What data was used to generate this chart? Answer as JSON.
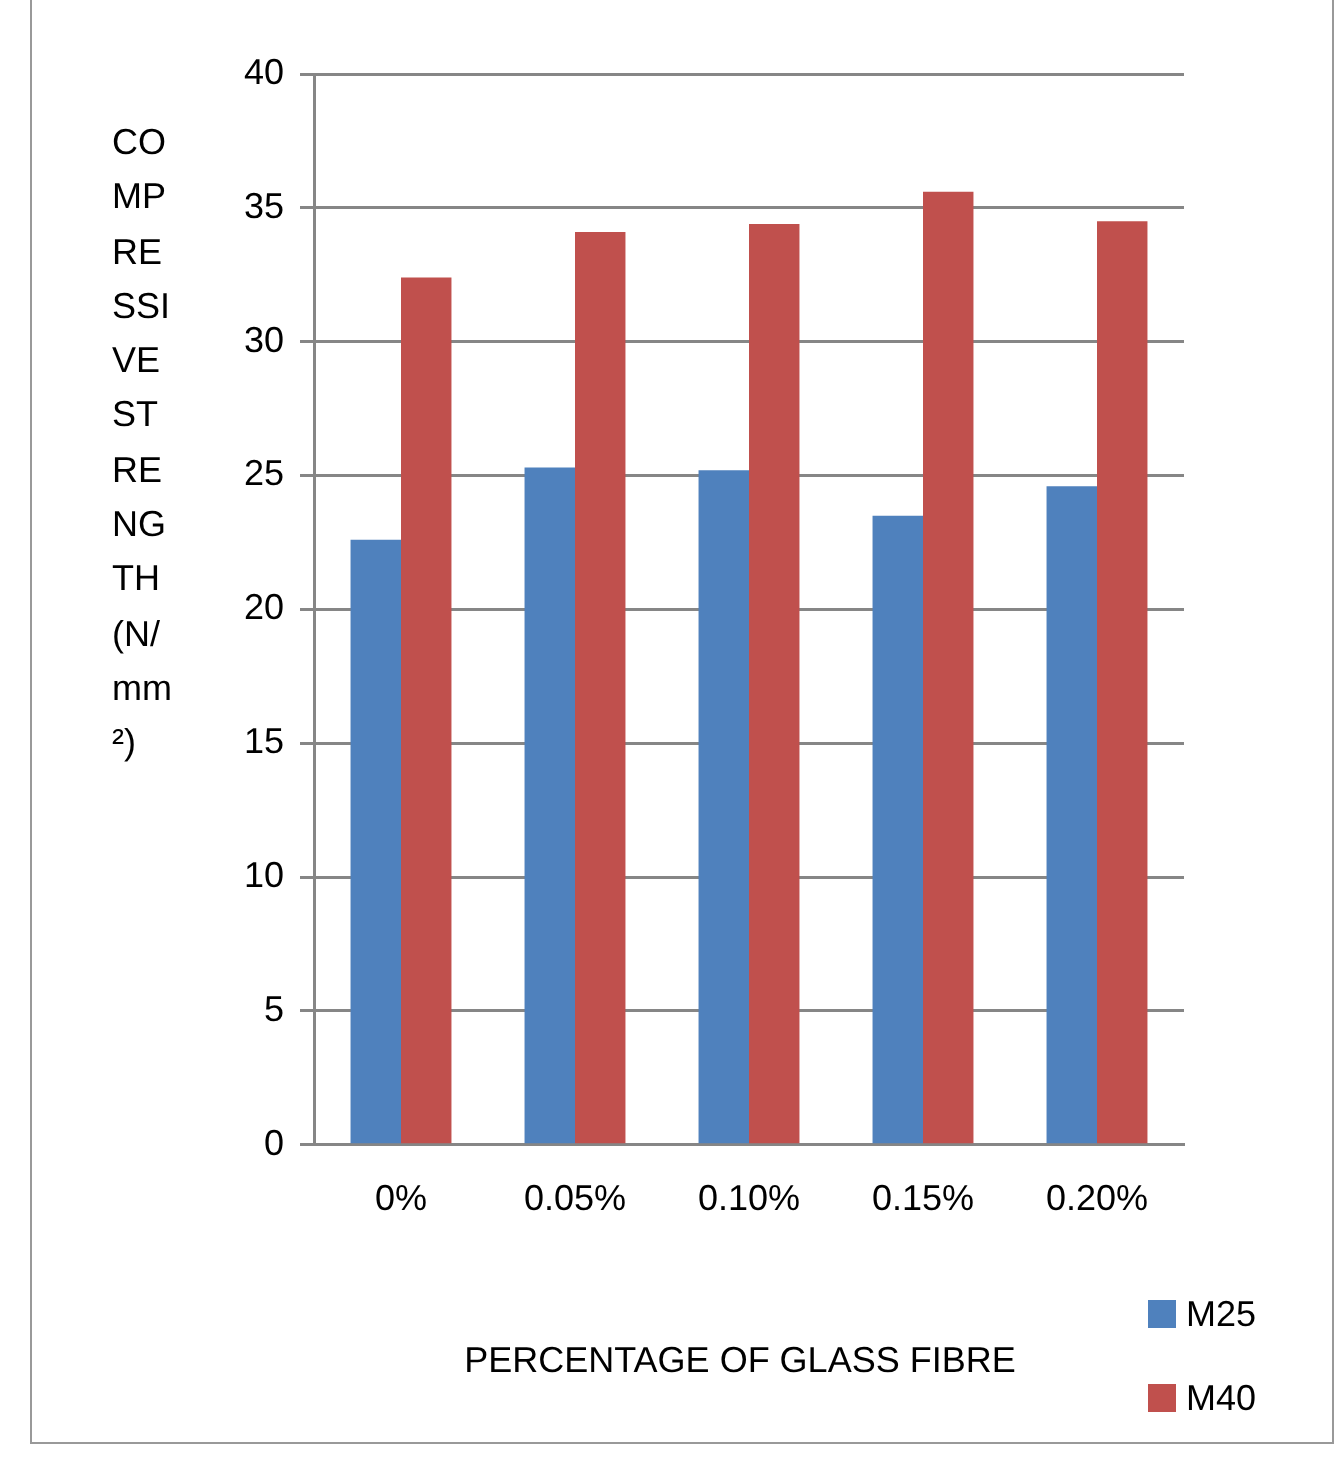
{
  "chart_data": {
    "type": "bar",
    "xlabel": "PERCENTAGE OF GLASS FIBRE",
    "ylabel": "COMPRESSIVE STRENGTH (N/mm²)",
    "categories": [
      "0%",
      "0.05%",
      "0.10%",
      "0.15%",
      "0.20%"
    ],
    "series": [
      {
        "name": "M25",
        "color": "#4f81bd",
        "values": [
          22.6,
          25.3,
          25.2,
          23.5,
          24.6
        ]
      },
      {
        "name": "M40",
        "color": "#c0504d",
        "values": [
          32.4,
          34.1,
          34.4,
          35.6,
          34.5
        ]
      }
    ],
    "ylim": [
      0,
      40
    ],
    "yticks": [
      0,
      5,
      10,
      15,
      20,
      25,
      30,
      35,
      40
    ],
    "grid": "y",
    "legend": "bottom right"
  }
}
